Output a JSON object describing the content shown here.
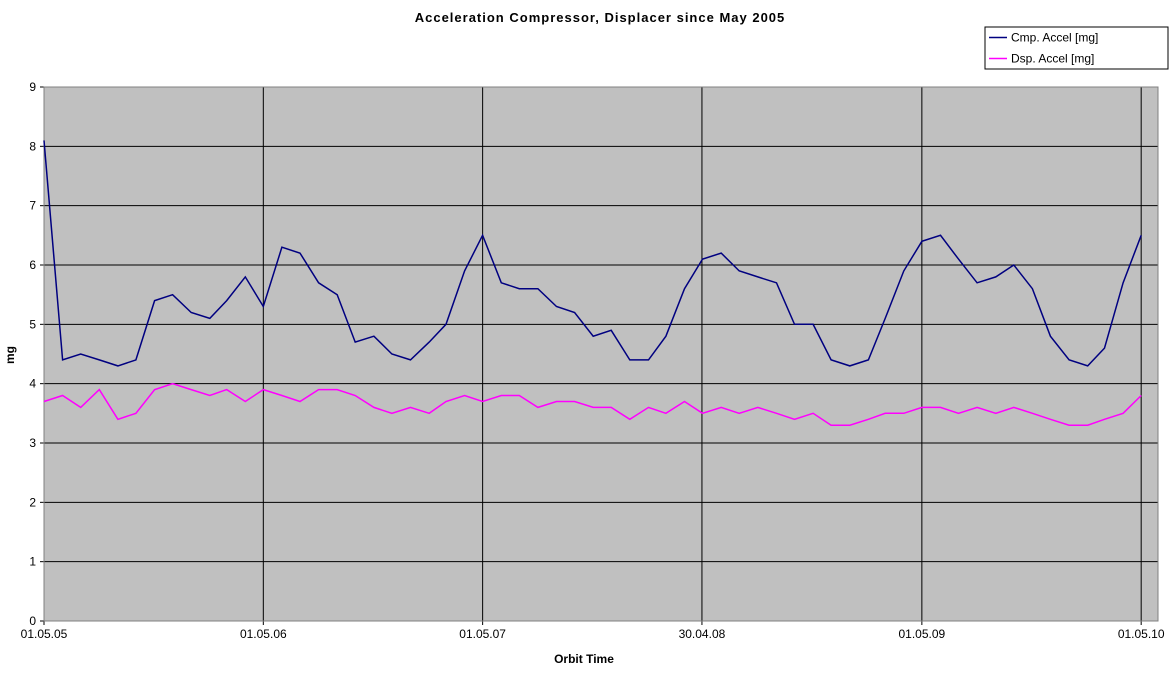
{
  "chart_data": {
    "type": "line",
    "title": "Acceleration Compressor, Displacer since May 2005",
    "x_label": "Orbit Time",
    "y_label": "mg",
    "x": [
      "2005-05-01",
      "2005-06-01",
      "2005-07-01",
      "2005-08-01",
      "2005-09-01",
      "2005-10-01",
      "2005-11-01",
      "2005-12-01",
      "2006-01-01",
      "2006-02-01",
      "2006-03-01",
      "2006-04-01",
      "2006-05-01",
      "2006-06-01",
      "2006-07-01",
      "2006-08-01",
      "2006-09-01",
      "2006-10-01",
      "2006-11-01",
      "2006-12-01",
      "2007-01-01",
      "2007-02-01",
      "2007-03-01",
      "2007-04-01",
      "2007-05-01",
      "2007-06-01",
      "2007-07-01",
      "2007-08-01",
      "2007-09-01",
      "2007-10-01",
      "2007-11-01",
      "2007-12-01",
      "2008-01-01",
      "2008-02-01",
      "2008-03-01",
      "2008-04-01",
      "2008-05-01",
      "2008-06-01",
      "2008-07-01",
      "2008-08-01",
      "2008-09-01",
      "2008-10-01",
      "2008-11-01",
      "2008-12-01",
      "2009-01-01",
      "2009-02-01",
      "2009-03-01",
      "2009-04-01",
      "2009-05-01",
      "2009-06-01",
      "2009-07-01",
      "2009-08-01",
      "2009-09-01",
      "2009-10-01",
      "2009-11-01",
      "2009-12-01",
      "2010-01-01",
      "2010-02-01",
      "2010-03-01",
      "2010-04-01",
      "2010-05-01"
    ],
    "series": [
      {
        "name": "Cmp. Accel [mg]",
        "color": "#000080",
        "values": [
          8.1,
          4.4,
          4.5,
          4.4,
          4.3,
          4.4,
          5.4,
          5.5,
          5.2,
          5.1,
          5.4,
          5.8,
          5.3,
          6.3,
          6.2,
          5.7,
          5.5,
          4.7,
          4.8,
          4.5,
          4.4,
          4.7,
          5.0,
          5.9,
          6.5,
          5.7,
          5.6,
          5.6,
          5.3,
          5.2,
          4.8,
          4.9,
          4.4,
          4.4,
          4.8,
          5.6,
          6.1,
          6.2,
          5.9,
          5.8,
          5.7,
          5.0,
          5.0,
          4.4,
          4.3,
          4.4,
          5.1,
          5.9,
          6.4,
          6.5,
          6.1,
          5.7,
          5.8,
          6.0,
          5.6,
          4.8,
          4.4,
          4.3,
          4.6,
          5.7,
          6.5
        ]
      },
      {
        "name": "Dsp. Accel [mg]",
        "color": "#ff00ff",
        "values": [
          3.7,
          3.8,
          3.6,
          3.9,
          3.4,
          3.5,
          3.9,
          4.0,
          3.9,
          3.8,
          3.9,
          3.7,
          3.9,
          3.8,
          3.7,
          3.9,
          3.9,
          3.8,
          3.6,
          3.5,
          3.6,
          3.5,
          3.7,
          3.8,
          3.7,
          3.8,
          3.8,
          3.6,
          3.7,
          3.7,
          3.6,
          3.6,
          3.4,
          3.6,
          3.5,
          3.7,
          3.5,
          3.6,
          3.5,
          3.6,
          3.5,
          3.4,
          3.5,
          3.3,
          3.3,
          3.4,
          3.5,
          3.5,
          3.6,
          3.6,
          3.5,
          3.6,
          3.5,
          3.6,
          3.5,
          3.4,
          3.3,
          3.3,
          3.4,
          3.5,
          3.8
        ]
      }
    ],
    "xlim": [
      "2005-05-01",
      "2010-05-29"
    ],
    "xticks": [
      {
        "value": "2005-05-01",
        "label": "01.05.05"
      },
      {
        "value": "2006-05-01",
        "label": "01.05.06"
      },
      {
        "value": "2007-05-01",
        "label": "01.05.07"
      },
      {
        "value": "2008-04-30",
        "label": "30.04.08"
      },
      {
        "value": "2009-05-01",
        "label": "01.05.09"
      },
      {
        "value": "2010-05-01",
        "label": "01.05.10"
      }
    ],
    "ylim": [
      0,
      9
    ],
    "yticks": [
      0,
      1,
      2,
      3,
      4,
      5,
      6,
      7,
      8,
      9
    ],
    "grid": true,
    "legend": "top-right"
  }
}
